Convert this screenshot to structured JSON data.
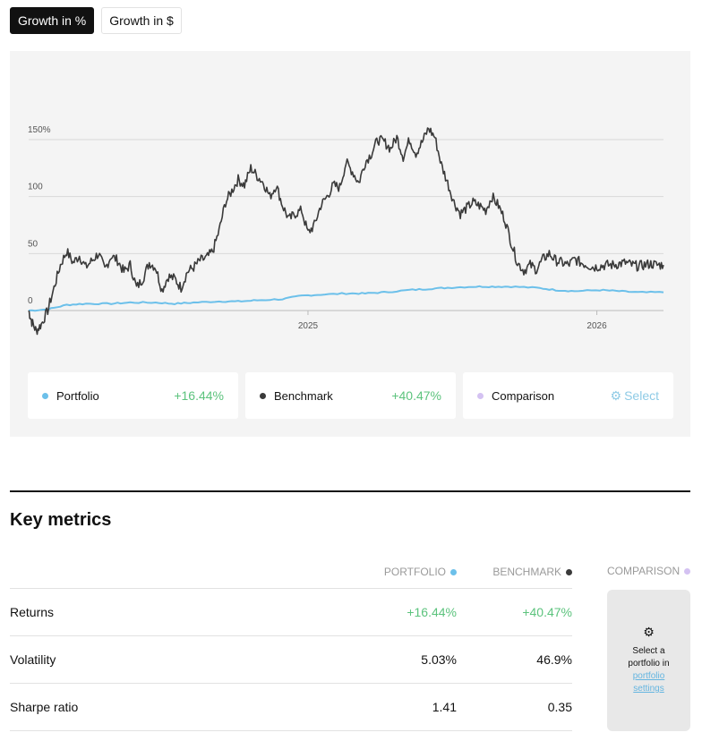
{
  "toggles": {
    "growth_pct": "Growth in %",
    "growth_usd": "Growth in $"
  },
  "chart_data": {
    "type": "line",
    "x_ticks": [
      "2025",
      "2026"
    ],
    "y_ticks": [
      "150%",
      "100",
      "50",
      "0"
    ],
    "ylim": [
      -20,
      160
    ],
    "grid": true,
    "series": [
      {
        "name": "Portfolio",
        "color": "#6cc0ea",
        "x": [
          0,
          0.03,
          0.06,
          0.09,
          0.13,
          0.16,
          0.2,
          0.23,
          0.26,
          0.3,
          0.33,
          0.36,
          0.4,
          0.43,
          0.46,
          0.5,
          0.53,
          0.56,
          0.6,
          0.63,
          0.66,
          0.7,
          0.73,
          0.76,
          0.8,
          0.83,
          0.86,
          0.9,
          0.93,
          0.96,
          1.0
        ],
        "y": [
          0,
          1,
          5,
          6,
          6,
          7,
          7,
          6,
          7,
          8,
          8,
          9,
          10,
          13,
          14,
          15,
          15,
          16,
          18,
          19,
          20,
          21,
          21,
          21,
          20,
          18,
          17,
          18,
          17,
          16,
          16
        ]
      },
      {
        "name": "Benchmark",
        "color": "#3a3a3a",
        "x": [
          0,
          0.005,
          0.012,
          0.02,
          0.03,
          0.04,
          0.05,
          0.06,
          0.07,
          0.08,
          0.09,
          0.1,
          0.11,
          0.12,
          0.13,
          0.14,
          0.15,
          0.16,
          0.17,
          0.18,
          0.19,
          0.2,
          0.21,
          0.22,
          0.23,
          0.24,
          0.25,
          0.26,
          0.27,
          0.28,
          0.29,
          0.3,
          0.31,
          0.32,
          0.33,
          0.34,
          0.35,
          0.36,
          0.37,
          0.38,
          0.39,
          0.4,
          0.41,
          0.42,
          0.43,
          0.44,
          0.45,
          0.46,
          0.47,
          0.48,
          0.49,
          0.5,
          0.51,
          0.52,
          0.53,
          0.54,
          0.55,
          0.56,
          0.57,
          0.58,
          0.59,
          0.6,
          0.61,
          0.62,
          0.63,
          0.64,
          0.65,
          0.66,
          0.67,
          0.68,
          0.69,
          0.7,
          0.71,
          0.72,
          0.73,
          0.74,
          0.75,
          0.76,
          0.77,
          0.78,
          0.79,
          0.8,
          0.81,
          0.82,
          0.83,
          0.84,
          0.85,
          0.86,
          0.87,
          0.88,
          0.89,
          0.9,
          0.91,
          0.92,
          0.93,
          0.94,
          0.95,
          0.96,
          0.97,
          0.98,
          0.99,
          1.0
        ],
        "y": [
          0,
          -10,
          -18,
          -12,
          0,
          20,
          40,
          52,
          42,
          48,
          38,
          44,
          50,
          36,
          48,
          44,
          34,
          40,
          20,
          28,
          42,
          38,
          18,
          30,
          28,
          20,
          34,
          38,
          44,
          46,
          52,
          70,
          95,
          105,
          115,
          110,
          125,
          118,
          112,
          100,
          110,
          92,
          80,
          85,
          88,
          68,
          75,
          92,
          100,
          110,
          108,
          130,
          122,
          112,
          130,
          138,
          150,
          148,
          142,
          152,
          135,
          150,
          138,
          148,
          160,
          152,
          128,
          112,
          95,
          85,
          90,
          95,
          92,
          88,
          100,
          92,
          80,
          60,
          42,
          35,
          40,
          36,
          45,
          50,
          44,
          42,
          40,
          45,
          42,
          40,
          38,
          39,
          40,
          40,
          41,
          42,
          40,
          39,
          40,
          41,
          40,
          40
        ]
      }
    ]
  },
  "legend": [
    {
      "name": "Portfolio",
      "value": "+16.44%",
      "color": "#6cc0ea"
    },
    {
      "name": "Benchmark",
      "value": "+40.47%",
      "color": "#3a3a3a"
    },
    {
      "name": "Comparison",
      "action": "Select",
      "color": "#d4c2f2"
    }
  ],
  "key_metrics": {
    "title": "Key metrics",
    "headers": {
      "portfolio": "PORTFOLIO",
      "benchmark": "BENCHMARK",
      "comparison": "COMPARISON"
    },
    "rows": [
      {
        "label": "Returns",
        "portfolio": "+16.44%",
        "benchmark": "+40.47%"
      },
      {
        "label": "Volatility",
        "portfolio": "5.03%",
        "benchmark": "46.9%"
      },
      {
        "label": "Sharpe ratio",
        "portfolio": "1.41",
        "benchmark": "0.35"
      }
    ],
    "comparison_prompt": {
      "line1": "Select a",
      "line2": "portfolio in",
      "link1": "portfolio",
      "link2": "settings"
    }
  }
}
